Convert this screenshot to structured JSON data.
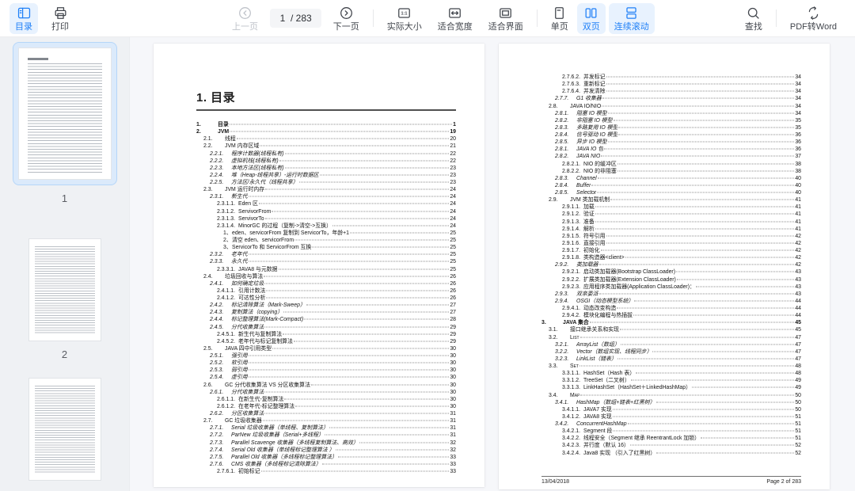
{
  "toolbar": {
    "accent": "#2080f7",
    "accent_bg": "#e8f2fe",
    "toc_label": "目录",
    "print_label": "打印",
    "prev_label": "上一页",
    "page_current": "1",
    "page_total": "/ 283",
    "next_label": "下一页",
    "actual_size_label": "实际大小",
    "fit_width_label": "适合宽度",
    "fit_page_label": "适合界面",
    "single_page_label": "单页",
    "two_page_label": "双页",
    "continuous_label": "连续滚动",
    "find_label": "查找",
    "pdf_to_word_label": "PDF转Word"
  },
  "sidebar": {
    "page1_label": "1",
    "page2_label": "2",
    "selected_page": "1"
  },
  "document": {
    "heading": "1. 目录",
    "footer": {
      "date": "13/04/2018",
      "page_label": "Page 2 of 283"
    },
    "left_toc": [
      [
        "1.",
        "目录",
        "1",
        1,
        "b"
      ],
      [
        "2.",
        "JVM",
        "19",
        1,
        "b"
      ],
      [
        "2.1.",
        "线程",
        "20",
        2,
        "n"
      ],
      [
        "2.2.",
        "JVM 内存区域",
        "21",
        2,
        "n"
      ],
      [
        "2.2.1.",
        "程序计数器(线程私有)",
        "22",
        3,
        "i"
      ],
      [
        "2.2.2.",
        "虚拟机栈(线程私有)",
        "22",
        3,
        "i"
      ],
      [
        "2.2.3.",
        "本地方法区(线程私有)",
        "23",
        3,
        "i"
      ],
      [
        "2.2.4.",
        "堆（Heap-线程共享）-运行时数据区",
        "23",
        3,
        "i"
      ],
      [
        "2.2.5.",
        "方法区/永久代（线程共享）",
        "23",
        3,
        "i"
      ],
      [
        "2.3.",
        "JVM 运行时内存",
        "24",
        2,
        "n"
      ],
      [
        "2.3.1.",
        "新生代",
        "24",
        3,
        "i"
      ],
      [
        "2.3.1.1.",
        "Eden 区",
        "24",
        4,
        "n"
      ],
      [
        "2.3.1.2.",
        "ServivorFrom",
        "24",
        4,
        "n"
      ],
      [
        "2.3.1.3.",
        "ServivorTo",
        "24",
        4,
        "n"
      ],
      [
        "2.3.1.4.",
        "MinorGC 的过程（复制->清空->互换）",
        "24",
        4,
        "n"
      ],
      [
        "1、",
        "eden、servicorFrom 复制到 ServicorTo，年龄+1",
        "25",
        5,
        "n"
      ],
      [
        "2、",
        "清空 eden、servicorFrom",
        "25",
        5,
        "n"
      ],
      [
        "3、",
        "ServicorTo 和 ServicorFrom 互换",
        "25",
        5,
        "n"
      ],
      [
        "2.3.2.",
        "老年代",
        "25",
        3,
        "i"
      ],
      [
        "2.3.3.",
        "永久代",
        "25",
        3,
        "i"
      ],
      [
        "2.3.3.1.",
        "JAVA8 与元数据",
        "25",
        4,
        "n"
      ],
      [
        "2.4.",
        "垃圾回收与算法",
        "26",
        2,
        "n"
      ],
      [
        "2.4.1.",
        "如何确定垃圾",
        "26",
        3,
        "i"
      ],
      [
        "2.4.1.1.",
        "引用计数法",
        "26",
        4,
        "n"
      ],
      [
        "2.4.1.2.",
        "可达性分析",
        "26",
        4,
        "n"
      ],
      [
        "2.4.2.",
        "标记清除算法（Mark-Sweep）",
        "27",
        3,
        "i"
      ],
      [
        "2.4.3.",
        "复制算法（copying）",
        "27",
        3,
        "i"
      ],
      [
        "2.4.4.",
        "标记整理算法(Mark-Compact)",
        "28",
        3,
        "i"
      ],
      [
        "2.4.5.",
        "分代收集算法",
        "29",
        3,
        "i"
      ],
      [
        "2.4.5.1.",
        "新生代与复制算法",
        "29",
        4,
        "n"
      ],
      [
        "2.4.5.2.",
        "老年代与标记复制算法",
        "29",
        4,
        "n"
      ],
      [
        "2.5.",
        "JAVA 四中引用类型",
        "30",
        2,
        "n"
      ],
      [
        "2.5.1.",
        "强引用",
        "30",
        3,
        "i"
      ],
      [
        "2.5.2.",
        "软引用",
        "30",
        3,
        "i"
      ],
      [
        "2.5.3.",
        "弱引用",
        "30",
        3,
        "i"
      ],
      [
        "2.5.4.",
        "虚引用",
        "30",
        3,
        "i"
      ],
      [
        "2.6.",
        "GC 分代收集算法 VS 分区收集算法",
        "30",
        2,
        "n"
      ],
      [
        "2.6.1.",
        "分代收集算法",
        "30",
        3,
        "i"
      ],
      [
        "2.6.1.1.",
        "在新生代-复制算法",
        "30",
        4,
        "n"
      ],
      [
        "2.6.1.2.",
        "在老年代-标记整理算法",
        "30",
        4,
        "n"
      ],
      [
        "2.6.2.",
        "分区收集算法",
        "31",
        3,
        "i"
      ],
      [
        "2.7.",
        "GC 垃圾收集器",
        "31",
        2,
        "n"
      ],
      [
        "2.7.1.",
        "Serial 垃圾收集器（单线程、复制算法）",
        "31",
        3,
        "i"
      ],
      [
        "2.7.2.",
        "ParNew 垃圾收集器（Serial+多线程）",
        "31",
        3,
        "i"
      ],
      [
        "2.7.3.",
        "Parallel Scavenge 收集器（多线程复制算法、高效）",
        "32",
        3,
        "i"
      ],
      [
        "2.7.4.",
        "Serial Old 收集器（单线程标记整理算法 ）",
        "32",
        3,
        "i"
      ],
      [
        "2.7.5.",
        "Parallel Old 收集器（多线程标记整理算法）",
        "33",
        3,
        "i"
      ],
      [
        "2.7.6.",
        "CMS 收集器（多线程标记清除算法）",
        "33",
        3,
        "i"
      ],
      [
        "2.7.6.1.",
        "初始标记",
        "33",
        4,
        "n"
      ]
    ],
    "right_toc": [
      [
        "2.7.6.2.",
        "并发标记",
        "34",
        4,
        "n"
      ],
      [
        "2.7.6.3.",
        "重新标记",
        "34",
        4,
        "n"
      ],
      [
        "2.7.6.4.",
        "并发清除",
        "34",
        4,
        "n"
      ],
      [
        "2.7.7.",
        "G1 收集器",
        "34",
        3,
        "i"
      ],
      [
        "2.8.",
        "JAVA IO/NIO",
        "34",
        2,
        "n"
      ],
      [
        "2.8.1.",
        "阻塞 IO 模型",
        "34",
        3,
        "i"
      ],
      [
        "2.8.2.",
        "非阻塞 IO 模型",
        "35",
        3,
        "i"
      ],
      [
        "2.8.3.",
        "多路复用 IO 模型",
        "35",
        3,
        "i"
      ],
      [
        "2.8.4.",
        "信号驱动 IO 模型",
        "36",
        3,
        "i"
      ],
      [
        "2.8.5.",
        "异步 IO 模型",
        "36",
        3,
        "i"
      ],
      [
        "2.8.1.",
        "JAVA IO 包",
        "36",
        3,
        "i"
      ],
      [
        "2.8.2.",
        "JAVA NIO",
        "37",
        3,
        "i"
      ],
      [
        "2.8.2.1.",
        "NIO 的缓冲区",
        "38",
        4,
        "n"
      ],
      [
        "2.8.2.2.",
        "NIO 的非阻塞",
        "38",
        4,
        "n"
      ],
      [
        "2.8.3.",
        "Channel",
        "40",
        3,
        "i"
      ],
      [
        "2.8.4.",
        "Buffer",
        "40",
        3,
        "i"
      ],
      [
        "2.8.5.",
        "Selector",
        "40",
        3,
        "i"
      ],
      [
        "2.9.",
        "JVM 类加载机制",
        "41",
        2,
        "n"
      ],
      [
        "2.9.1.1.",
        "加载",
        "41",
        4,
        "n"
      ],
      [
        "2.9.1.2.",
        "验证",
        "41",
        4,
        "n"
      ],
      [
        "2.9.1.3.",
        "准备",
        "41",
        4,
        "n"
      ],
      [
        "2.9.1.4.",
        "解析",
        "41",
        4,
        "n"
      ],
      [
        "2.9.1.5.",
        "符号引用",
        "42",
        4,
        "n"
      ],
      [
        "2.9.1.6.",
        "直接引用",
        "42",
        4,
        "n"
      ],
      [
        "2.9.1.7.",
        "初始化",
        "42",
        4,
        "n"
      ],
      [
        "2.9.1.8.",
        "类构造器<client>",
        "42",
        4,
        "n"
      ],
      [
        "2.9.2.",
        "类加载器",
        "42",
        3,
        "i"
      ],
      [
        "2.9.2.1.",
        "启动类加载器(Bootstrap ClassLoader)",
        "43",
        4,
        "n"
      ],
      [
        "2.9.2.2.",
        "扩展类加载器(Extension ClassLoader)",
        "43",
        4,
        "n"
      ],
      [
        "2.9.2.3.",
        "应用程序类加载器(Application ClassLoader)：",
        "43",
        4,
        "n"
      ],
      [
        "2.9.3.",
        "双亲委派",
        "43",
        3,
        "i"
      ],
      [
        "2.9.4.",
        "OSGI（动态模型系统）",
        "44",
        3,
        "i"
      ],
      [
        "2.9.4.1.",
        "动态改变构造",
        "44",
        4,
        "n"
      ],
      [
        "2.9.4.2.",
        "模块化编程与热插拔",
        "44",
        4,
        "n"
      ],
      [
        "3.",
        "JAVA 集合",
        "45",
        1,
        "b"
      ],
      [
        "3.1.",
        "接口继承关系和实现",
        "45",
        2,
        "n"
      ],
      [
        "3.2.",
        "List",
        "47",
        2,
        "sc"
      ],
      [
        "3.2.1.",
        "ArrayList（数组）",
        "47",
        3,
        "i"
      ],
      [
        "3.2.2.",
        "Vector（数组实现、线程同步）",
        "47",
        3,
        "i"
      ],
      [
        "3.2.3.",
        "LinkList（链表）",
        "47",
        3,
        "i"
      ],
      [
        "3.3.",
        "Set",
        "48",
        2,
        "sc"
      ],
      [
        "3.3.1.1.",
        "HashSet（Hash 表）",
        "48",
        4,
        "n"
      ],
      [
        "3.3.1.2.",
        "TreeSet（二叉树）",
        "49",
        4,
        "n"
      ],
      [
        "3.3.1.3.",
        "LinkHashSet（HashSet＋LinkedHashMap）",
        "49",
        4,
        "n"
      ],
      [
        "3.4.",
        "Map",
        "50",
        2,
        "sc"
      ],
      [
        "3.4.1.",
        "HashMap（数组+链表+红黑树）",
        "50",
        3,
        "i"
      ],
      [
        "3.4.1.1.",
        "JAVA7 实现",
        "50",
        4,
        "n"
      ],
      [
        "3.4.1.2.",
        "JAVA8 实现",
        "51",
        4,
        "n"
      ],
      [
        "3.4.2.",
        "ConcurrentHashMap",
        "51",
        3,
        "i"
      ],
      [
        "3.4.2.1.",
        "Segment 段",
        "51",
        4,
        "n"
      ],
      [
        "3.4.2.2.",
        "线程安全（Segment 继承 ReentrantLock 加锁）",
        "51",
        4,
        "n"
      ],
      [
        "3.4.2.3.",
        "并行度（默认 16）",
        "52",
        4,
        "n"
      ],
      [
        "3.4.2.4.",
        "Java8 实现 （引入了红黑树）",
        "52",
        4,
        "n"
      ]
    ]
  }
}
